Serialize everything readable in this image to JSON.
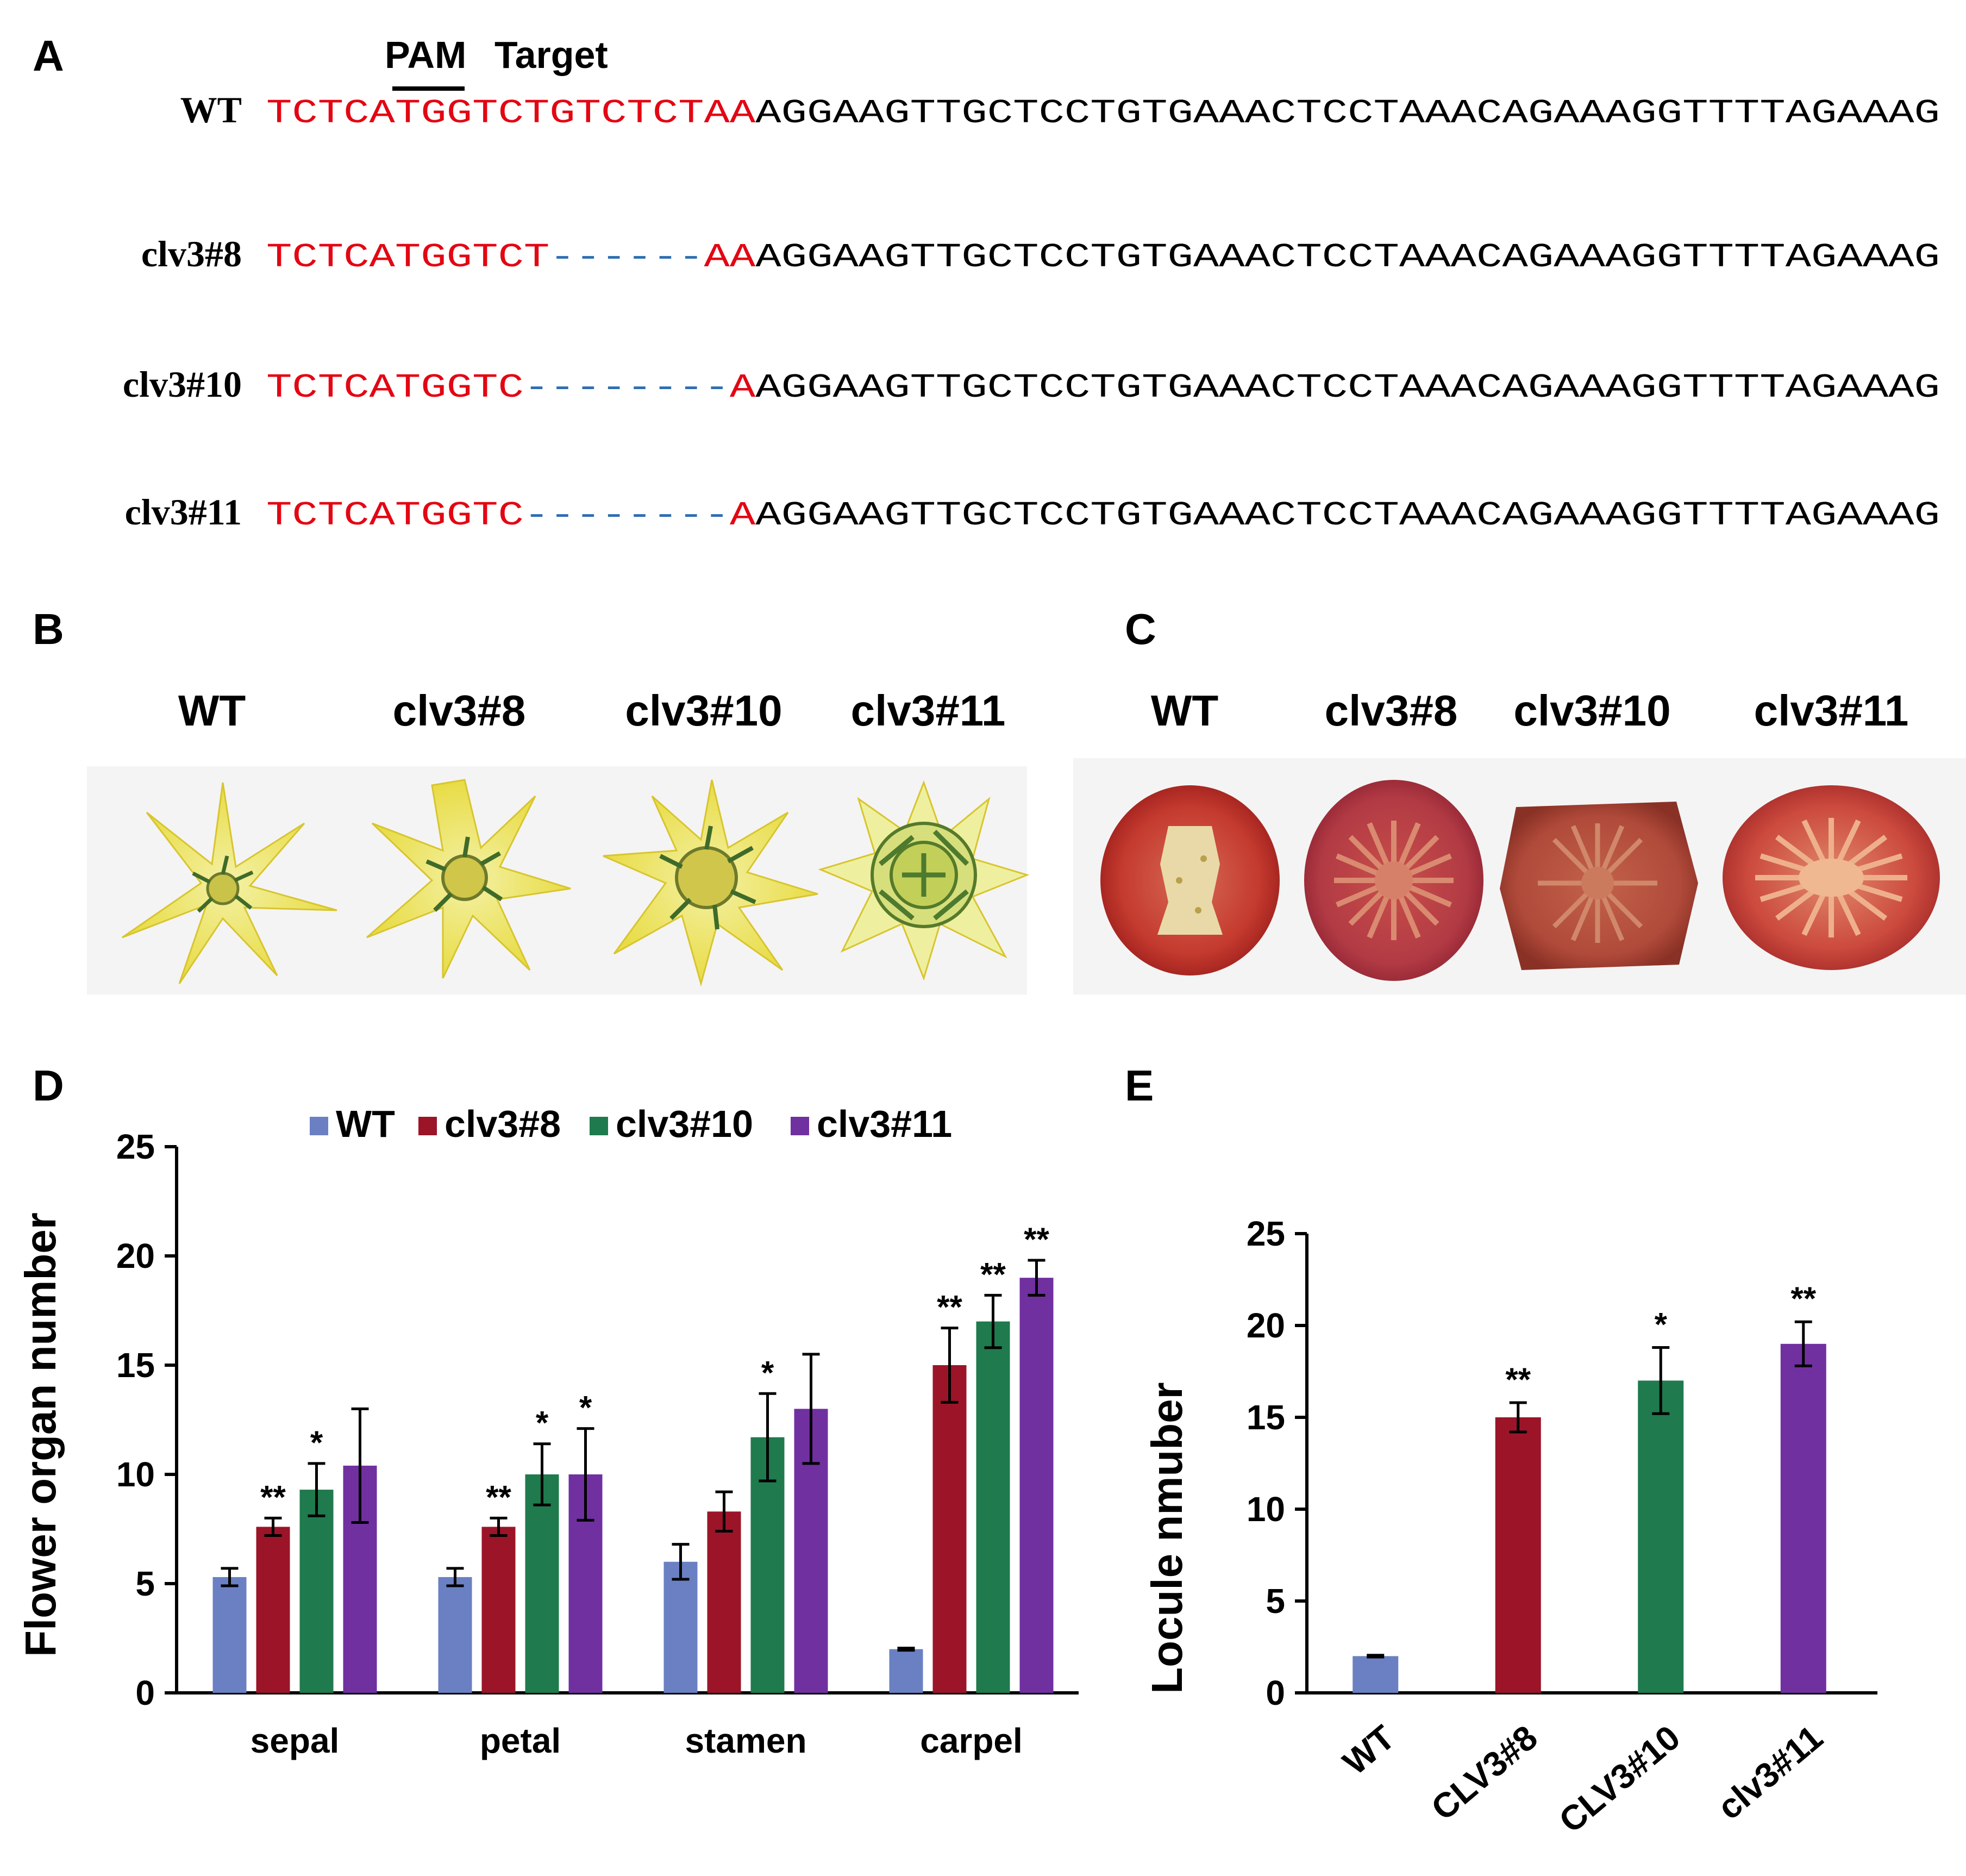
{
  "panel_labels": {
    "a": "A",
    "b": "B",
    "c": "C",
    "d": "D",
    "e": "E"
  },
  "colors": {
    "wt": "#6a80c3",
    "clv3_8": "#9b1428",
    "clv3_10": "#1f7a4d",
    "clv3_11": "#7030a0",
    "target_red": "#e30613",
    "gap_blue": "#2e6db4"
  },
  "panel_a": {
    "pam_label": "PAM",
    "target_label": "Target",
    "rows": [
      {
        "label": "WT",
        "red_left": "TCTCATGGTCTGTCTCTAA",
        "gap": "",
        "red_right": "",
        "black": "AGGAAGTTGCTCCTGTGAAACTCCTAAACAGAAAGGTTTTAGAAAG"
      },
      {
        "label": "clv3#8",
        "red_left": "TCTCATGGTCT",
        "gap": "------",
        "red_right": "AA",
        "black": "AGGAAGTTGCTCCTGTGAAACTCCTAAACAGAAAGGTTTTAGAAAG"
      },
      {
        "label": "clv3#10",
        "red_left": "TCTCATGGTC",
        "gap": "--------",
        "red_right": "A",
        "black": "AGGAAGTTGCTCCTGTGAAACTCCTAAACAGAAAGGTTTTAGAAAG"
      },
      {
        "label": "clv3#11",
        "red_left": "TCTCATGGTC",
        "gap": "--------",
        "red_right": "A",
        "black": "AGGAAGTTGCTCCTGTGAAACTCCTAAACAGAAAGGTTTTAGAAAG"
      }
    ]
  },
  "panel_b": {
    "labels": [
      "WT",
      "clv3#8",
      "clv3#10",
      "clv3#11"
    ]
  },
  "panel_c": {
    "labels": [
      "WT",
      "clv3#8",
      "clv3#10",
      "clv3#11"
    ]
  },
  "chart_data": [
    {
      "id": "D",
      "type": "bar",
      "title": "",
      "xlabel": "",
      "ylabel": "Flower organ number",
      "categories": [
        "sepal",
        "petal",
        "stamen",
        "carpel"
      ],
      "ylim": [
        0,
        25
      ],
      "yticks": [
        0,
        5,
        10,
        15,
        20,
        25
      ],
      "legend": {
        "placement": "top",
        "entries": [
          "WT",
          "clv3#8",
          "clv3#10",
          "clv3#11"
        ]
      },
      "series": [
        {
          "name": "WT",
          "values": [
            5.3,
            5.3,
            6.0,
            2.0
          ],
          "errors": [
            0.4,
            0.4,
            0.8,
            0.05
          ],
          "significance": [
            "",
            "",
            "",
            ""
          ]
        },
        {
          "name": "clv3#8",
          "values": [
            7.6,
            7.6,
            8.3,
            15.0
          ],
          "errors": [
            0.4,
            0.4,
            0.9,
            1.7
          ],
          "significance": [
            "**",
            "**",
            "",
            "**"
          ]
        },
        {
          "name": "clv3#10",
          "values": [
            9.3,
            10.0,
            11.7,
            17.0
          ],
          "errors": [
            1.2,
            1.4,
            2.0,
            1.2
          ],
          "significance": [
            "*",
            "*",
            "*",
            "**"
          ]
        },
        {
          "name": "clv3#11",
          "values": [
            10.4,
            10.0,
            13.0,
            19.0
          ],
          "errors": [
            2.6,
            2.1,
            2.5,
            0.8
          ],
          "significance": [
            "",
            "*",
            "",
            "**"
          ]
        }
      ]
    },
    {
      "id": "E",
      "type": "bar",
      "title": "",
      "xlabel": "",
      "ylabel": "Locule nmuber",
      "categories": [
        "WT",
        "CLV3#8",
        "CLV3#10",
        "clv3#11"
      ],
      "ylim": [
        0,
        25
      ],
      "yticks": [
        0,
        5,
        10,
        15,
        20,
        25
      ],
      "values": [
        2.0,
        15.0,
        17.0,
        19.0
      ],
      "errors": [
        0.05,
        0.8,
        1.8,
        1.2
      ],
      "significance": [
        "",
        "**",
        "*",
        "**"
      ]
    }
  ]
}
